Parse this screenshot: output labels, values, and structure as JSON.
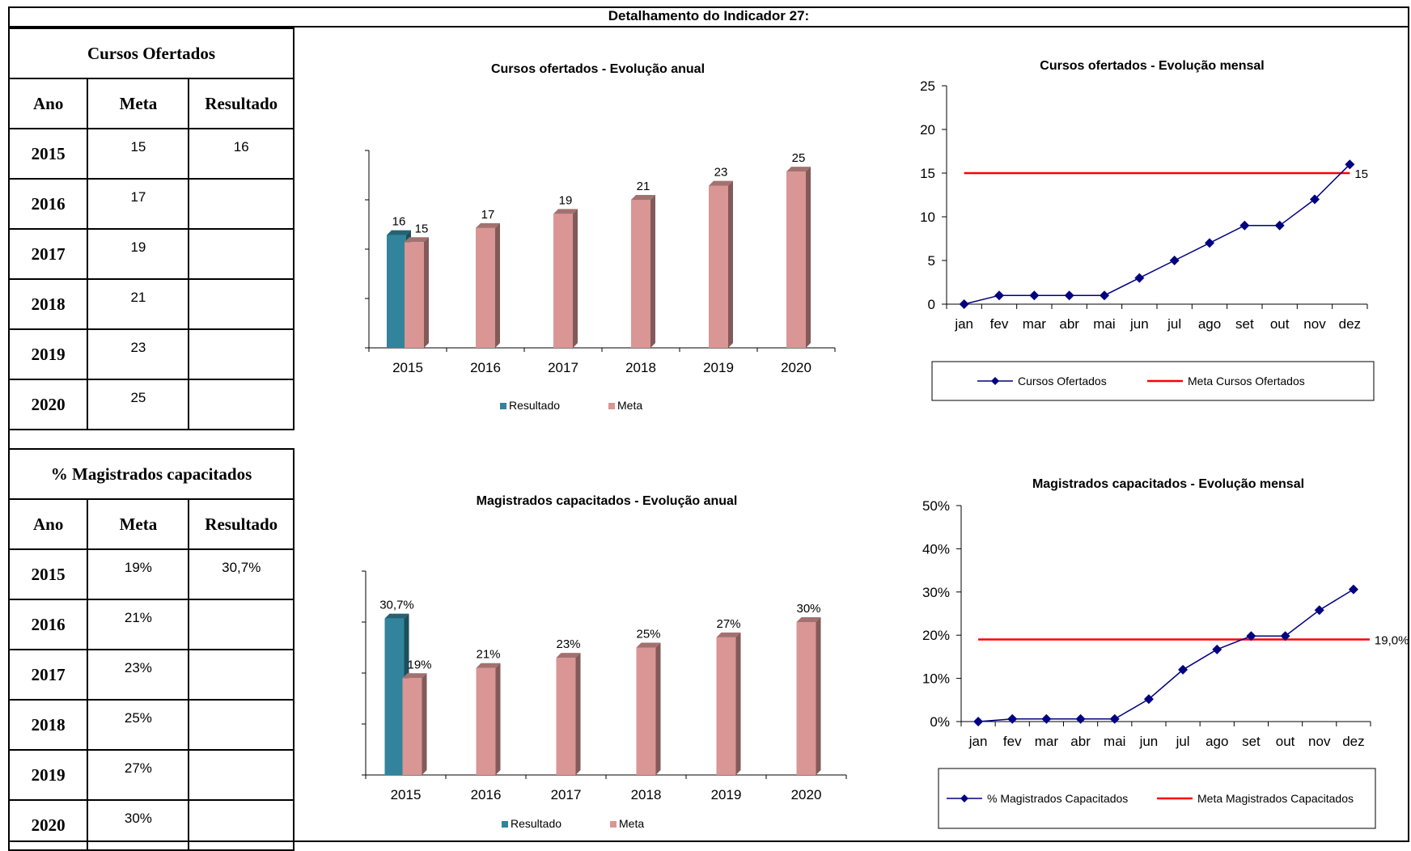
{
  "page_title": "Detalhamento do Indicador 27:",
  "tables": [
    {
      "caption": "Cursos Ofertados",
      "headers": [
        "Ano",
        "Meta",
        "Resultado"
      ],
      "rows": [
        {
          "ano": "2015",
          "meta": "15",
          "resultado": "16"
        },
        {
          "ano": "2016",
          "meta": "17",
          "resultado": ""
        },
        {
          "ano": "2017",
          "meta": "19",
          "resultado": ""
        },
        {
          "ano": "2018",
          "meta": "21",
          "resultado": ""
        },
        {
          "ano": "2019",
          "meta": "23",
          "resultado": ""
        },
        {
          "ano": "2020",
          "meta": "25",
          "resultado": ""
        }
      ]
    },
    {
      "caption": "% Magistrados capacitados",
      "headers": [
        "Ano",
        "Meta",
        "Resultado"
      ],
      "rows": [
        {
          "ano": "2015",
          "meta": "19%",
          "resultado": "30,7%"
        },
        {
          "ano": "2016",
          "meta": "21%",
          "resultado": ""
        },
        {
          "ano": "2017",
          "meta": "23%",
          "resultado": ""
        },
        {
          "ano": "2018",
          "meta": "25%",
          "resultado": ""
        },
        {
          "ano": "2019",
          "meta": "27%",
          "resultado": ""
        },
        {
          "ano": "2020",
          "meta": "30%",
          "resultado": ""
        }
      ]
    }
  ],
  "colors": {
    "resultado": "#31849B",
    "meta": "#D99694",
    "line": "#000080",
    "meta_line": "#FF0000"
  },
  "chart_data": [
    {
      "type": "bar",
      "title": "Cursos ofertados - Evolução  anual",
      "categories": [
        "2015",
        "2016",
        "2017",
        "2018",
        "2019",
        "2020"
      ],
      "series": [
        {
          "name": "Resultado",
          "values": [
            16,
            null,
            null,
            null,
            null,
            null
          ],
          "labels": [
            "16",
            "",
            "",
            "",
            "",
            ""
          ]
        },
        {
          "name": "Meta",
          "values": [
            15,
            17,
            19,
            21,
            23,
            25
          ],
          "labels": [
            "15",
            "17",
            "19",
            "21",
            "23",
            "25"
          ]
        }
      ],
      "ylim": [
        0,
        28
      ],
      "legend": "bottom"
    },
    {
      "type": "line",
      "title": "Cursos ofertados - Evolução mensal",
      "categories": [
        "jan",
        "fev",
        "mar",
        "abr",
        "mai",
        "jun",
        "jul",
        "ago",
        "set",
        "out",
        "nov",
        "dez"
      ],
      "series": [
        {
          "name": "Cursos Ofertados",
          "values": [
            0,
            1,
            1,
            1,
            1,
            3,
            5,
            7,
            9,
            9,
            12,
            16
          ]
        },
        {
          "name": "Meta Cursos Ofertados",
          "values": [
            15,
            15,
            15,
            15,
            15,
            15,
            15,
            15,
            15,
            15,
            15,
            15
          ]
        }
      ],
      "ylim": [
        0,
        25
      ],
      "yticks": [
        "0",
        "5",
        "10",
        "15",
        "20",
        "25"
      ],
      "meta_label": "15",
      "legend": "bottom"
    },
    {
      "type": "bar",
      "title": "Magistrados capacitados - Evolução  anual",
      "categories": [
        "2015",
        "2016",
        "2017",
        "2018",
        "2019",
        "2020"
      ],
      "series": [
        {
          "name": "Resultado",
          "values": [
            30.7,
            null,
            null,
            null,
            null,
            null
          ],
          "labels": [
            "30,7%",
            "",
            "",
            "",
            "",
            ""
          ]
        },
        {
          "name": "Meta",
          "values": [
            19,
            21,
            23,
            25,
            27,
            30
          ],
          "labels": [
            "19%",
            "21%",
            "23%",
            "25%",
            "27%",
            "30%"
          ]
        }
      ],
      "ylim": [
        0,
        40
      ],
      "legend": "bottom"
    },
    {
      "type": "line",
      "title": "Magistrados capacitados - Evolução mensal",
      "categories": [
        "jan",
        "fev",
        "mar",
        "abr",
        "mai",
        "jun",
        "jul",
        "ago",
        "set",
        "out",
        "nov",
        "dez"
      ],
      "series": [
        {
          "name": "% Magistrados Capacitados",
          "values": [
            0,
            0.6,
            0.6,
            0.6,
            0.6,
            5.2,
            12,
            16.7,
            19.8,
            19.8,
            25.8,
            30.6
          ]
        },
        {
          "name": "Meta Magistrados Capacitados",
          "values": [
            19,
            19,
            19,
            19,
            19,
            19,
            19,
            19,
            19,
            19,
            19,
            19
          ]
        }
      ],
      "ylim": [
        0,
        50
      ],
      "yticks": [
        "0%",
        "10%",
        "20%",
        "30%",
        "40%",
        "50%"
      ],
      "meta_label": "19,0%",
      "legend": "bottom"
    }
  ]
}
